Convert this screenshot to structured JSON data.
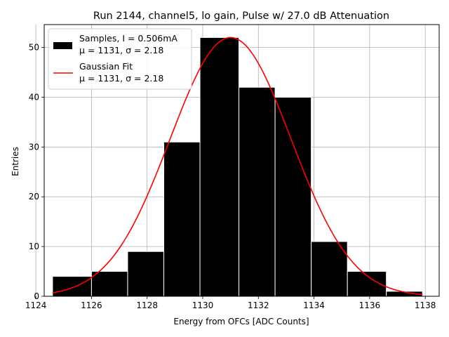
{
  "chart_data": {
    "type": "bar",
    "title": "Run 2144, channel5, lo gain, Pulse w/ 27.0 dB Attenuation",
    "xlabel": "Energy from OFCs [ADC Counts]",
    "ylabel": "Entries",
    "xlim": [
      1124.3,
      1138.5
    ],
    "ylim": [
      0,
      54.6
    ],
    "xticks": [
      1124,
      1126,
      1128,
      1130,
      1132,
      1134,
      1136,
      1138
    ],
    "yticks": [
      0,
      10,
      20,
      30,
      40,
      50
    ],
    "grid": true,
    "legend_position": "top-left",
    "histogram": {
      "name": "Samples, I = 0.506mA",
      "stats": "μ = 1131, σ = 2.18",
      "color": "#000000",
      "edge_color": "#ffffff",
      "bins": [
        {
          "x0": 1124.6,
          "x1": 1126.0,
          "count": 4
        },
        {
          "x0": 1126.0,
          "x1": 1127.3,
          "count": 5
        },
        {
          "x0": 1127.3,
          "x1": 1128.6,
          "count": 9
        },
        {
          "x0": 1128.6,
          "x1": 1129.9,
          "count": 31
        },
        {
          "x0": 1129.9,
          "x1": 1131.3,
          "count": 52
        },
        {
          "x0": 1131.3,
          "x1": 1132.6,
          "count": 42
        },
        {
          "x0": 1132.6,
          "x1": 1133.9,
          "count": 40
        },
        {
          "x0": 1133.9,
          "x1": 1135.2,
          "count": 11
        },
        {
          "x0": 1135.2,
          "x1": 1136.6,
          "count": 5
        },
        {
          "x0": 1136.6,
          "x1": 1137.9,
          "count": 1
        }
      ]
    },
    "fit": {
      "name": "Gaussian Fit",
      "stats": "μ = 1131, σ = 2.18",
      "color": "#ff0000",
      "mu": 1131.0,
      "sigma": 2.18,
      "amplitude": 52,
      "x_range": [
        1124.6,
        1137.9
      ]
    }
  }
}
